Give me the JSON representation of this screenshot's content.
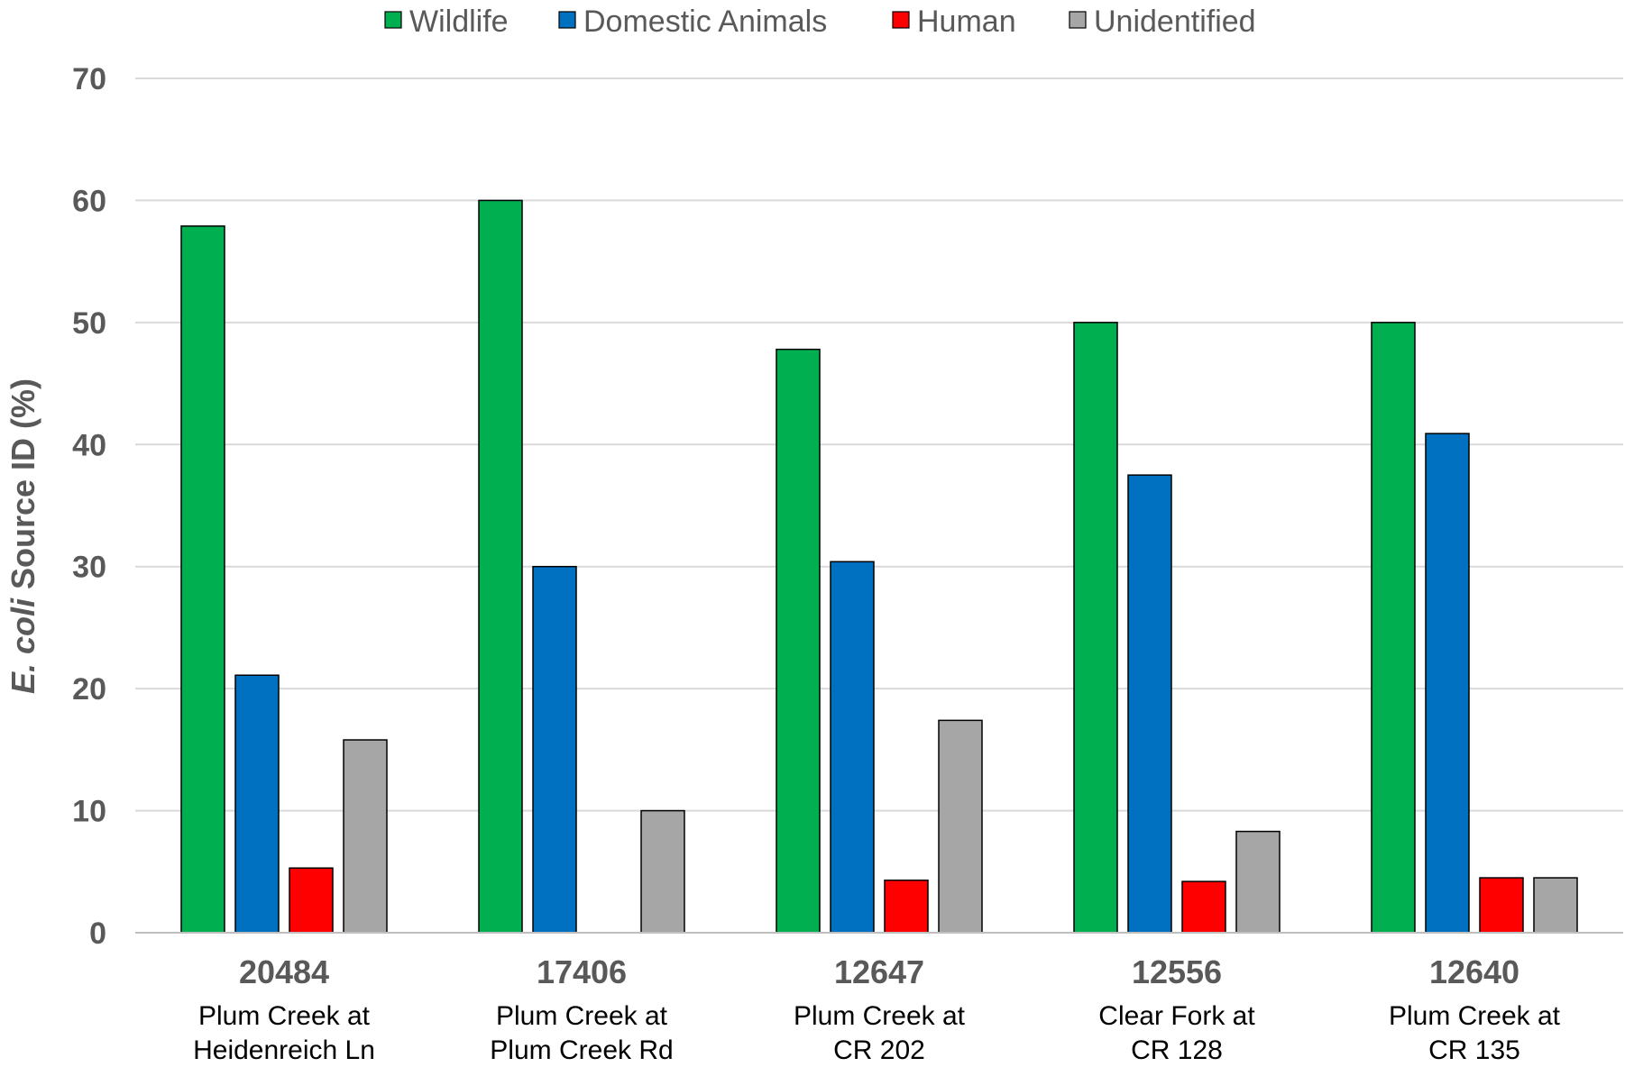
{
  "chart_data": {
    "type": "bar",
    "title": "",
    "ylabel_italic": "E. coli",
    "ylabel_rest": " Source ID (%)",
    "ylim": [
      0,
      70
    ],
    "yticks": [
      "0",
      "10",
      "20",
      "30",
      "40",
      "50",
      "60",
      "70"
    ],
    "grid": true,
    "legend_position": "top",
    "categories": [
      {
        "code": "20484",
        "line1": "Plum Creek at",
        "line2": "Heidenreich Ln"
      },
      {
        "code": "17406",
        "line1": "Plum Creek at",
        "line2": "Plum Creek Rd"
      },
      {
        "code": "12647",
        "line1": "Plum Creek at",
        "line2": "CR 202"
      },
      {
        "code": "12556",
        "line1": "Clear Fork at",
        "line2": "CR 128"
      },
      {
        "code": "12640",
        "line1": "Plum Creek at",
        "line2": "CR 135"
      }
    ],
    "series": [
      {
        "name": "Wildlife",
        "color": "#00B050",
        "values": [
          57.9,
          60.0,
          47.8,
          50.0,
          50.0
        ]
      },
      {
        "name": "Domestic Animals",
        "color": "#0070C0",
        "values": [
          21.1,
          30.0,
          30.4,
          37.5,
          40.9
        ]
      },
      {
        "name": "Human",
        "color": "#FF0000",
        "values": [
          5.3,
          0,
          4.3,
          4.2,
          4.5
        ]
      },
      {
        "name": "Unidentified",
        "color": "#A6A6A6",
        "values": [
          15.8,
          10.0,
          17.4,
          8.3,
          4.5
        ]
      }
    ]
  }
}
